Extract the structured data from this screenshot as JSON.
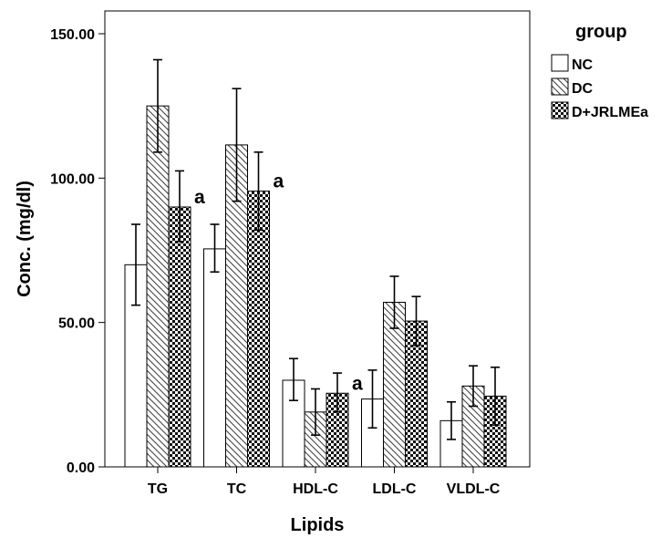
{
  "chart_data": {
    "type": "bar",
    "title": "",
    "xlabel": "Lipids",
    "ylabel": "Conc. (mg/dl)",
    "ylim": [
      0,
      155
    ],
    "yticks": [
      "0.00",
      "50.00",
      "100.00",
      "150.00"
    ],
    "ytick_values": [
      0,
      50,
      100,
      150
    ],
    "grid": false,
    "legend_title": "group",
    "legend_position": "right",
    "categories": [
      "TG",
      "TC",
      "HDL-C",
      "LDL-C",
      "VLDL-C"
    ],
    "series": [
      {
        "name": "NC",
        "pattern": "none",
        "values": [
          70,
          75.5,
          30,
          23.5,
          16
        ],
        "err_low": [
          56,
          67.5,
          23,
          13.5,
          9.5
        ],
        "err_high": [
          84,
          84,
          37.5,
          33.5,
          22.5
        ]
      },
      {
        "name": "DC",
        "pattern": "diagonal-hatch",
        "values": [
          125,
          111.5,
          19,
          57,
          28
        ],
        "err_low": [
          109,
          92,
          11,
          48,
          21
        ],
        "err_high": [
          141,
          131,
          27,
          66,
          35
        ]
      },
      {
        "name": "D+JRLMEa",
        "pattern": "checker",
        "values": [
          90,
          95.5,
          25.5,
          50.5,
          24.5
        ],
        "err_low": [
          78,
          82,
          19,
          42,
          14.5
        ],
        "err_high": [
          102.5,
          109,
          32.5,
          59,
          34.5
        ]
      }
    ],
    "annotations": [
      {
        "category": "TG",
        "series": "D+JRLMEa",
        "text": "a"
      },
      {
        "category": "TC",
        "series": "D+JRLMEa",
        "text": "a"
      },
      {
        "category": "HDL-C",
        "series": "D+JRLMEa",
        "text": "a"
      }
    ]
  }
}
